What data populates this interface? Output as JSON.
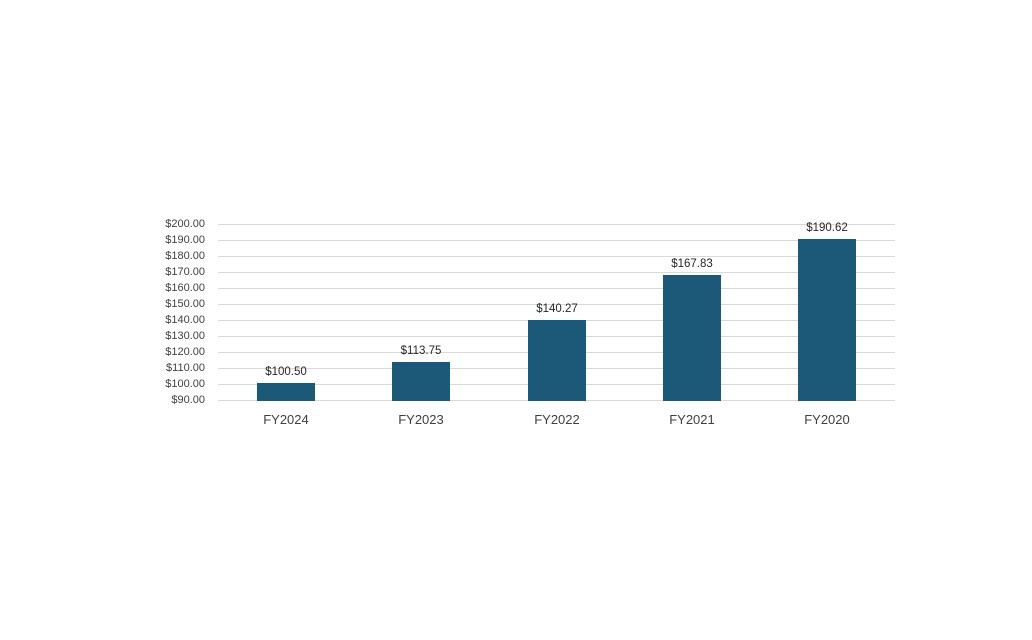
{
  "page": {
    "background_color": "#ffffff"
  },
  "chart_data": {
    "type": "bar",
    "title": "",
    "xlabel": "",
    "ylabel": "",
    "categories": [
      "FY2024",
      "FY2023",
      "FY2022",
      "FY2021",
      "FY2020"
    ],
    "values": [
      100.5,
      113.75,
      140.27,
      167.83,
      190.62
    ],
    "data_labels": [
      "$100.50",
      "$113.75",
      "$140.27",
      "$167.83",
      "$190.62"
    ],
    "ylim": [
      90,
      200
    ],
    "ytick_step": 10,
    "ytick_labels": [
      "$90.00",
      "$100.00",
      "$110.00",
      "$120.00",
      "$130.00",
      "$140.00",
      "$150.00",
      "$160.00",
      "$170.00",
      "$180.00",
      "$190.00",
      "$200.00"
    ],
    "grid": true,
    "legend": false,
    "colors": {
      "bar_fill": "#1c5877",
      "gridline": "#d9d9d9",
      "axis_text": "#404040",
      "data_label_text": "#262626"
    }
  },
  "layout_note": "single bar chart on blank white canvas, no title, no legend"
}
